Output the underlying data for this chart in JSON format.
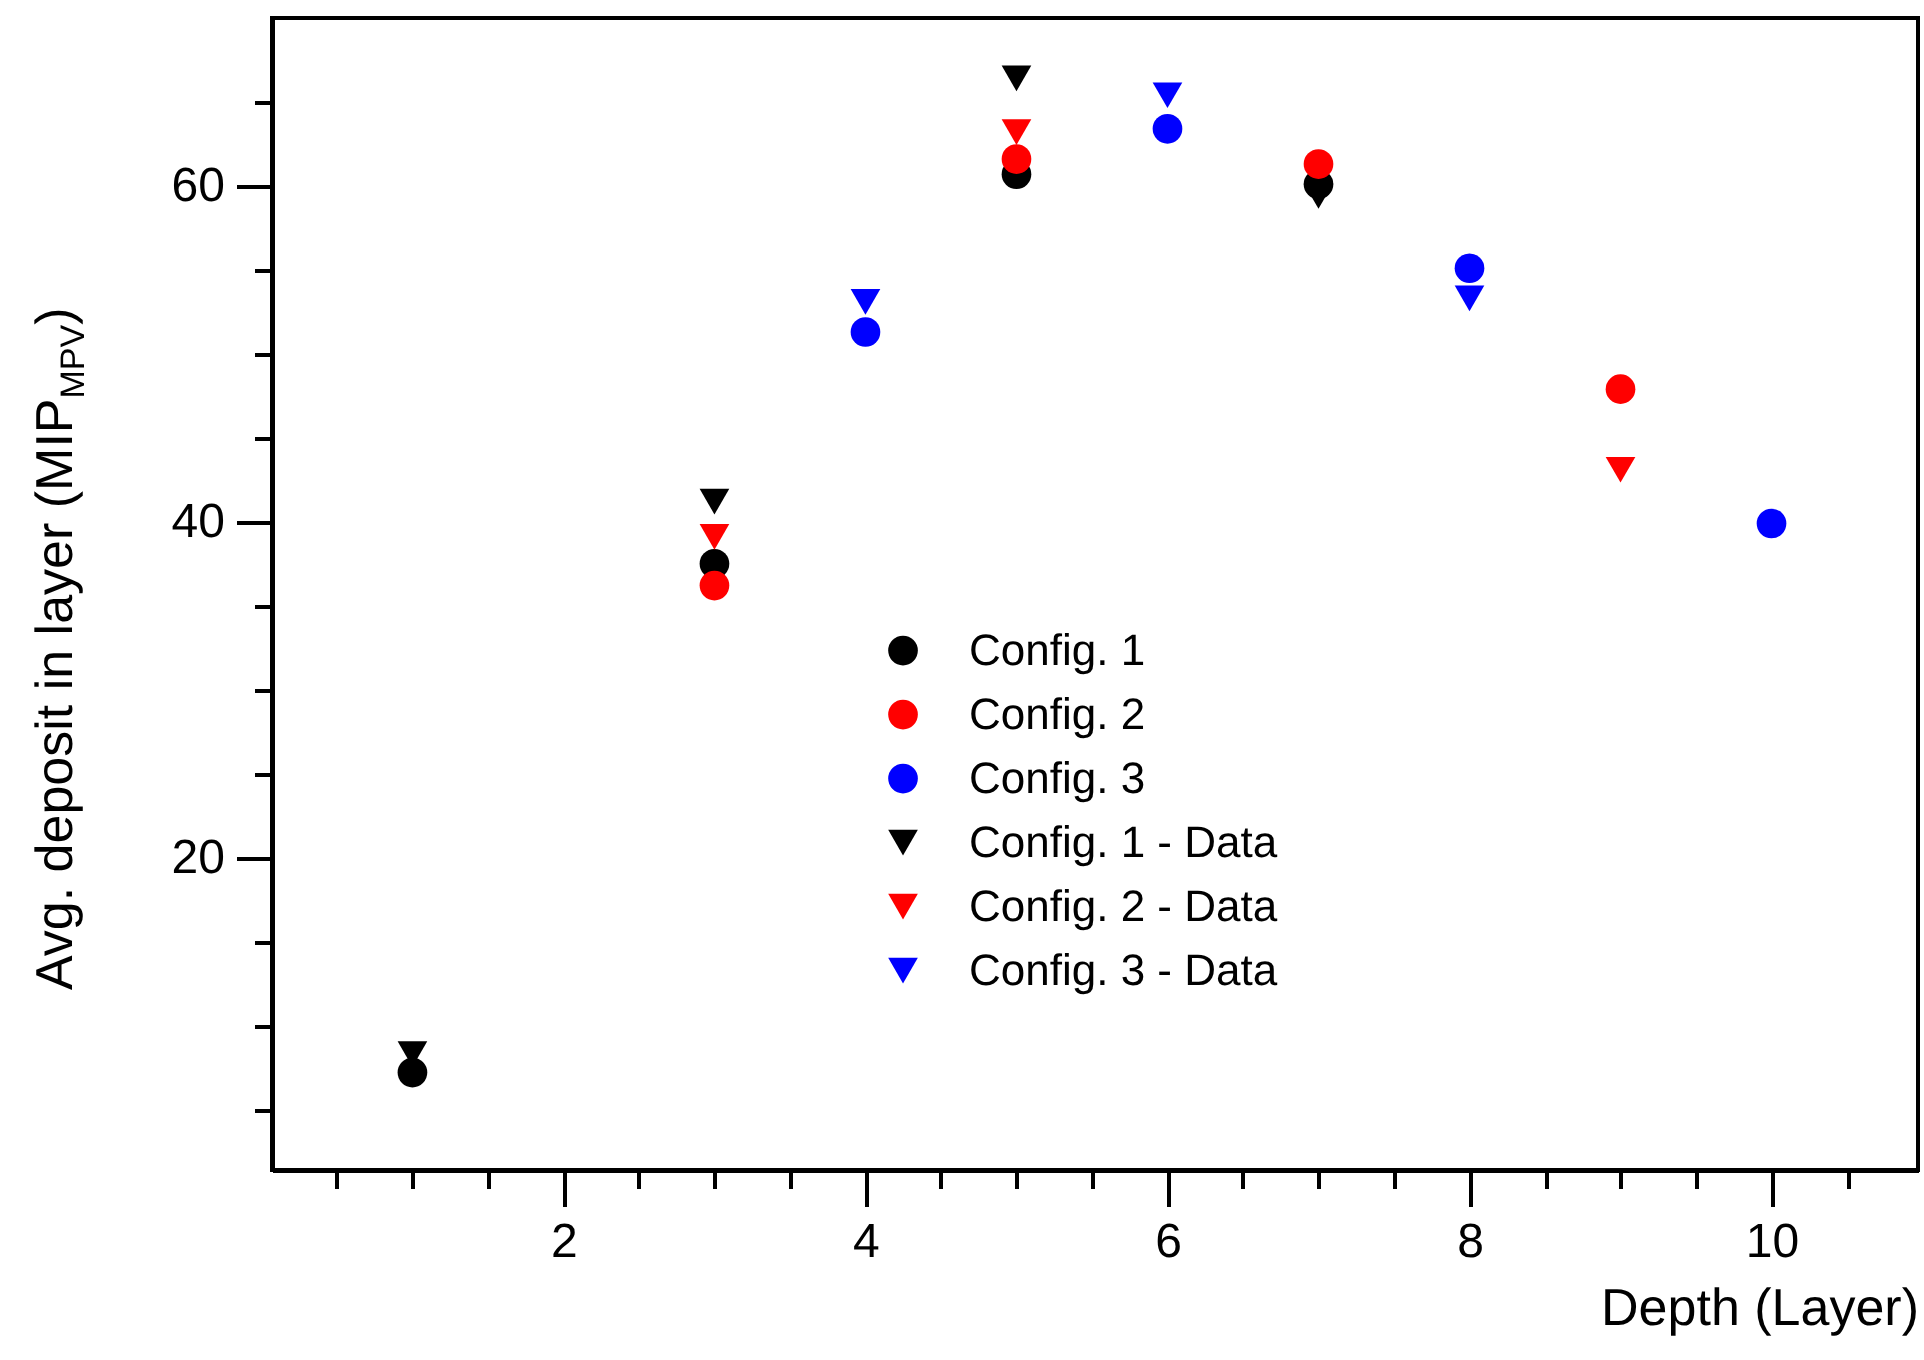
{
  "chart_data": {
    "type": "scatter",
    "xlabel": "Depth (Layer)",
    "ylabel": "Avg. deposit in layer (MIP$_{MPV}$)",
    "xlim": [
      0.07,
      10.97
    ],
    "xticks": [
      {
        "value": 0.5,
        "label": null
      },
      {
        "value": 1,
        "label": null
      },
      {
        "value": 1.5,
        "label": null
      },
      2,
      {
        "value": 2.5,
        "label": null
      },
      {
        "value": 3,
        "label": null
      },
      {
        "value": 3.5,
        "label": null
      },
      4,
      {
        "value": 4.5,
        "label": null
      },
      {
        "value": 5,
        "label": null
      },
      {
        "value": 5.5,
        "label": null
      },
      6,
      {
        "value": 6.5,
        "label": null
      },
      {
        "value": 7,
        "label": null
      },
      {
        "value": 7.5,
        "label": null
      },
      8,
      {
        "value": 8.5,
        "label": null
      },
      {
        "value": 9,
        "label": null
      },
      {
        "value": 9.5,
        "label": null
      },
      10,
      {
        "value": 10.5,
        "label": null
      }
    ],
    "ylim": [
      1.4,
      70
    ],
    "yticks": [
      {
        "value": 5,
        "label": null
      },
      {
        "value": 10,
        "label": null
      },
      {
        "value": 15,
        "label": null
      },
      20,
      {
        "value": 25,
        "label": null
      },
      {
        "value": 30,
        "label": null
      },
      {
        "value": 35,
        "label": null
      },
      40,
      {
        "value": 45,
        "label": null
      },
      {
        "value": 50,
        "label": null
      },
      {
        "value": 55,
        "label": null
      },
      60,
      {
        "value": 65,
        "label": null
      }
    ],
    "grid": false,
    "legend": "bottom",
    "series": [
      {
        "name": "Config. 1",
        "color": "#000000",
        "marker": "circle",
        "x": [
          1,
          3,
          5,
          7
        ],
        "values": [
          7.2,
          37.5,
          60.7,
          60.1
        ]
      },
      {
        "name": "Config. 2",
        "color": "#ff0000",
        "marker": "circle",
        "x": [
          3,
          5,
          7,
          9
        ],
        "values": [
          36.2,
          61.6,
          61.3,
          47.9
        ]
      },
      {
        "name": "Config. 3",
        "color": "#0000ff",
        "marker": "circle",
        "x": [
          4,
          6,
          8,
          10
        ],
        "values": [
          51.3,
          63.4,
          55.1,
          39.9
        ]
      },
      {
        "name": "Config. 1 - Data",
        "color": "#000000",
        "marker": "triangle",
        "x": [
          1,
          3,
          5,
          7
        ],
        "values": [
          8.3,
          41.2,
          66.4,
          59.4
        ]
      },
      {
        "name": "Config. 2 - Data",
        "color": "#ff0000",
        "marker": "triangle",
        "x": [
          3,
          5,
          9
        ],
        "values": [
          39.1,
          63.2,
          43.1
        ]
      },
      {
        "name": "Config. 3 - Data",
        "color": "#0000ff",
        "marker": "triangle",
        "x": [
          4,
          6,
          8
        ],
        "values": [
          53.1,
          65.4,
          53.3
        ]
      }
    ]
  }
}
